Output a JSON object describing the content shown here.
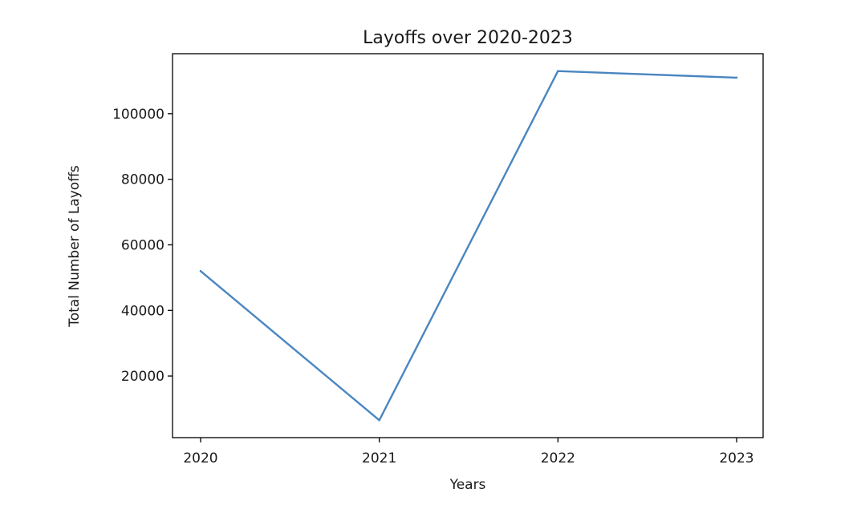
{
  "chart_data": {
    "type": "line",
    "title": "Layoffs over 2020-2023",
    "xlabel": "Years",
    "ylabel": "Total Number of Layoffs",
    "x": [
      "2020",
      "2021",
      "2022",
      "2023"
    ],
    "series": [
      {
        "values": [
          52000,
          6500,
          113000,
          111000
        ]
      }
    ],
    "yticks": [
      20000,
      40000,
      60000,
      80000,
      100000
    ],
    "ylim": [
      1200,
      118300
    ],
    "grid": false,
    "legend": false,
    "colors": {
      "line": "#4a86c0"
    }
  }
}
